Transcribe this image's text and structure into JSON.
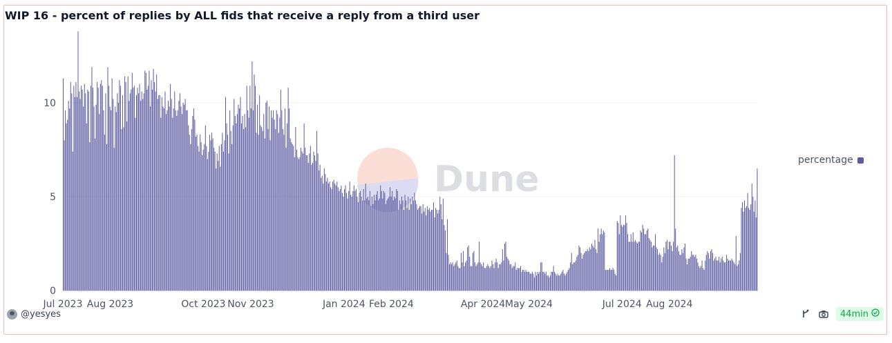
{
  "chart_title": "WIP 16 - percent of replies by ALL fids that receive a reply from a third user",
  "author": "@yesyes",
  "refresh_age": "44min",
  "watermark": "Dune",
  "colors": {
    "bar": "#5b5ba1",
    "grid": "#f0f0f0",
    "badge_text": "#16a34a",
    "badge_bg": "#dcfce7"
  },
  "chart_data": {
    "type": "bar",
    "title": "WIP 16 - percent of replies by ALL fids that receive a reply from a third user",
    "series": [
      {
        "name": "percentage"
      }
    ],
    "legend_position": "right",
    "grid": true,
    "ylim": [
      0,
      14
    ],
    "yticks": [
      0,
      5,
      10
    ],
    "x_start": "2023-07-01",
    "x_end": "2024-09-28",
    "xtick_labels": [
      {
        "date": "2023-07-01",
        "label": "Jul 2023"
      },
      {
        "date": "2023-08-01",
        "label": "Aug 2023"
      },
      {
        "date": "2023-10-01",
        "label": "Oct 2023"
      },
      {
        "date": "2023-11-01",
        "label": "Nov 2023"
      },
      {
        "date": "2024-01-01",
        "label": "Jan 2024"
      },
      {
        "date": "2024-02-01",
        "label": "Feb 2024"
      },
      {
        "date": "2024-04-01",
        "label": "Apr 2024"
      },
      {
        "date": "2024-05-01",
        "label": "May 2024"
      },
      {
        "date": "2024-07-01",
        "label": "Jul 2024"
      },
      {
        "date": "2024-08-01",
        "label": "Aug 2024"
      }
    ],
    "values": [
      11.3,
      8.0,
      9.6,
      8.9,
      9.1,
      10.1,
      9.7,
      11.1,
      10.5,
      7.4,
      10.9,
      10.3,
      11.1,
      10.3,
      13.8,
      10.6,
      10.2,
      10.9,
      10.7,
      9.8,
      11.0,
      10.5,
      8.9,
      10.7,
      10.6,
      7.9,
      10.9,
      11.9,
      10.8,
      9.8,
      8.1,
      9.9,
      11.1,
      10.8,
      9.4,
      11.0,
      11.2,
      10.9,
      9.6,
      8.3,
      10.5,
      7.8,
      11.9,
      10.9,
      9.8,
      9.6,
      11.3,
      10.2,
      7.6,
      9.8,
      9.5,
      10.5,
      10.0,
      11.2,
      10.9,
      8.6,
      10.4,
      8.7,
      11.4,
      11.1,
      9.0,
      11.4,
      10.1,
      10.5,
      10.7,
      11.6,
      10.8,
      10.9,
      9.2,
      10.4,
      10.8,
      10.5,
      11.0,
      10.1,
      10.6,
      10.2,
      10.5,
      11.7,
      11.6,
      10.7,
      10.9,
      11.7,
      9.8,
      11.2,
      10.7,
      11.8,
      11.1,
      10.6,
      11.5,
      10.2,
      10.4,
      10.4,
      9.2,
      10.3,
      9.8,
      9.7,
      10.6,
      9.4,
      9.6,
      10.1,
      9.8,
      11.0,
      10.2,
      9.2,
      9.7,
      10.6,
      9.6,
      9.3,
      9.6,
      10.1,
      10.5,
      9.8,
      9.4,
      10.0,
      9.9,
      10.2,
      9.6,
      9.6,
      8.8,
      8.3,
      7.8,
      8.6,
      9.3,
      9.7,
      9.1,
      8.2,
      8.3,
      7.7,
      7.4,
      8.3,
      7.9,
      7.2,
      7.5,
      7.8,
      8.8,
      7.7,
      7.0,
      7.4,
      8.3,
      8.0,
      8.4,
      8.1,
      7.6,
      7.4,
      6.5,
      7.3,
      6.9,
      7.7,
      6.6,
      7.8,
      8.4,
      7.4,
      8.0,
      10.3,
      8.9,
      8.3,
      7.3,
      9.6,
      8.5,
      7.8,
      8.8,
      10.2,
      9.3,
      8.9,
      9.4,
      9.9,
      9.7,
      10.3,
      8.9,
      9.3,
      8.6,
      9.4,
      8.7,
      10.9,
      9.6,
      9.2,
      10.9,
      9.7,
      12.2,
      9.6,
      11.5,
      10.9,
      8.4,
      9.9,
      8.3,
      10.4,
      8.8,
      8.7,
      8.5,
      9.4,
      8.1,
      10.0,
      10.1,
      8.6,
      9.8,
      8.0,
      9.6,
      9.2,
      9.6,
      9.1,
      8.6,
      9.6,
      9.4,
      8.4,
      9.2,
      10.7,
      9.6,
      8.6,
      8.3,
      9.7,
      7.6,
      8.9,
      10.8,
      9.7,
      8.1,
      7.9,
      7.8,
      7.7,
      7.1,
      8.7,
      7.5,
      7.1,
      7.0,
      7.1,
      7.6,
      7.4,
      7.3,
      8.9,
      7.6,
      7.2,
      7.2,
      6.8,
      7.3,
      7.7,
      6.7,
      6.8,
      7.4,
      7.2,
      6.9,
      8.5,
      7.3,
      6.4,
      6.7,
      6.0,
      6.1,
      5.7,
      6.5,
      6.2,
      5.8,
      6.0,
      5.7,
      5.8,
      5.5,
      5.4,
      5.8,
      5.9,
      5.7,
      5.6,
      5.8,
      5.5,
      5.3,
      5.4,
      5.6,
      5.2,
      5.0,
      5.4,
      5.6,
      5.2,
      4.9,
      5.3,
      5.8,
      5.1,
      5.0,
      5.3,
      5.6,
      5.3,
      5.4,
      5.0,
      4.7,
      5.2,
      5.3,
      5.0,
      4.8,
      5.4,
      4.8,
      5.7,
      4.9,
      5.0,
      4.8,
      5.3,
      4.5,
      5.0,
      4.6,
      5.1,
      4.8,
      5.1,
      5.3,
      4.8,
      4.9,
      5.6,
      5.3,
      4.9,
      5.3,
      5.2,
      4.6,
      4.8,
      4.9,
      5.0,
      5.5,
      5.0,
      5.3,
      4.8,
      5.0,
      4.9,
      5.4,
      5.3,
      4.3,
      4.8,
      4.6,
      5.0,
      4.8,
      4.3,
      5.1,
      4.8,
      4.4,
      5.0,
      4.3,
      4.9,
      4.6,
      5.0,
      4.8,
      5.2,
      4.8,
      4.6,
      4.3,
      4.4,
      4.5,
      4.5,
      4.1,
      4.6,
      4.2,
      4.4,
      4.0,
      4.5,
      4.3,
      4.4,
      4.2,
      4.3,
      4.3,
      4.7,
      3.9,
      4.4,
      4.3,
      4.1,
      4.3,
      5.0,
      4.6,
      3.8,
      4.9,
      3.5,
      3.2,
      2.0,
      3.8,
      1.9,
      1.4,
      1.5,
      1.4,
      1.5,
      1.3,
      1.4,
      1.5,
      1.6,
      1.3,
      1.2,
      1.2,
      2.0,
      1.5,
      2.1,
      1.3,
      1.5,
      1.6,
      2.3,
      2.4,
      1.8,
      1.3,
      1.3,
      2.0,
      2.1,
      1.5,
      1.3,
      1.4,
      1.5,
      2.6,
      1.5,
      1.4,
      1.3,
      1.5,
      1.2,
      1.2,
      1.3,
      1.4,
      1.3,
      1.2,
      1.3,
      1.6,
      1.4,
      1.2,
      1.5,
      1.7,
      1.5,
      1.2,
      1.4,
      1.4,
      1.5,
      2.2,
      1.6,
      2.5,
      2.6,
      1.8,
      1.7,
      1.6,
      1.4,
      1.4,
      1.2,
      1.3,
      1.3,
      1.5,
      1.1,
      1.2,
      1.2,
      1.2,
      1.3,
      1.0,
      1.1,
      1.1,
      1.0,
      1.1,
      1.0,
      1.0,
      1.0,
      0.9,
      0.9,
      1.0,
      0.9,
      0.7,
      1.0,
      0.8,
      1.0,
      0.9,
      1.0,
      1.5,
      1.5,
      1.0,
      1.0,
      0.9,
      1.0,
      0.8,
      0.8,
      0.7,
      0.8,
      1.0,
      1.0,
      1.3,
      1.0,
      0.9,
      0.8,
      0.9,
      0.8,
      0.8,
      0.9,
      1.0,
      1.1,
      0.9,
      0.8,
      0.9,
      1.0,
      1.1,
      1.2,
      1.5,
      2.0,
      1.4,
      1.5,
      1.5,
      1.6,
      1.8,
      1.9,
      2.4,
      2.3,
      2.0,
      1.7,
      1.9,
      2.0,
      2.1,
      2.1,
      2.2,
      2.1,
      2.3,
      2.2,
      2.5,
      2.4,
      2.3,
      2.7,
      2.2,
      2.0,
      3.3,
      2.6,
      3.0,
      3.3,
      3.0,
      3.2,
      3.1,
      1.1,
      1.1,
      1.1,
      1.1,
      1.2,
      1.1,
      1.1,
      1.2,
      1.1,
      0.9,
      0.8,
      3.7,
      3.6,
      3.0,
      4.0,
      3.5,
      3.4,
      3.5,
      3.5,
      4.0,
      3.6,
      3.0,
      2.6,
      2.6,
      3.0,
      2.6,
      3.1,
      2.6,
      2.7,
      2.6,
      2.5,
      2.6,
      2.6,
      3.2,
      3.1,
      3.5,
      3.3,
      3.0,
      3.0,
      3.2,
      3.3,
      2.8,
      2.7,
      2.6,
      2.3,
      2.4,
      2.4,
      3.0,
      2.3,
      2.2,
      1.9,
      2.0,
      1.9,
      1.5,
      1.8,
      2.3,
      2.0,
      2.6,
      2.7,
      2.2,
      2.6,
      2.6,
      2.4,
      2.1,
      2.6,
      7.2,
      3.3,
      2.3,
      2.4,
      2.1,
      1.9,
      1.9,
      2.2,
      2.0,
      2.3,
      2.5,
      1.7,
      1.4,
      1.7,
      1.7,
      1.8,
      2.1,
      1.9,
      1.9,
      1.8,
      1.9,
      1.7,
      1.5,
      1.3,
      1.2,
      1.3,
      1.6,
      1.2,
      1.1,
      1.6,
      1.9,
      2.1,
      2.0,
      1.7,
      2.1,
      2.2,
      2.0,
      1.6,
      1.7,
      1.8,
      1.6,
      1.6,
      1.8,
      1.5,
      1.7,
      1.8,
      1.6,
      1.5,
      1.5,
      1.9,
      1.7,
      1.6,
      1.6,
      1.6,
      1.7,
      1.6,
      1.5,
      1.4,
      2.9,
      1.3,
      1.4,
      1.6,
      2.0,
      4.4,
      4.7,
      4.2,
      4.8,
      4.4,
      4.5,
      5.2,
      4.4,
      4.3,
      4.6,
      5.7,
      5.0,
      4.2,
      4.8,
      3.9,
      6.5
    ]
  }
}
